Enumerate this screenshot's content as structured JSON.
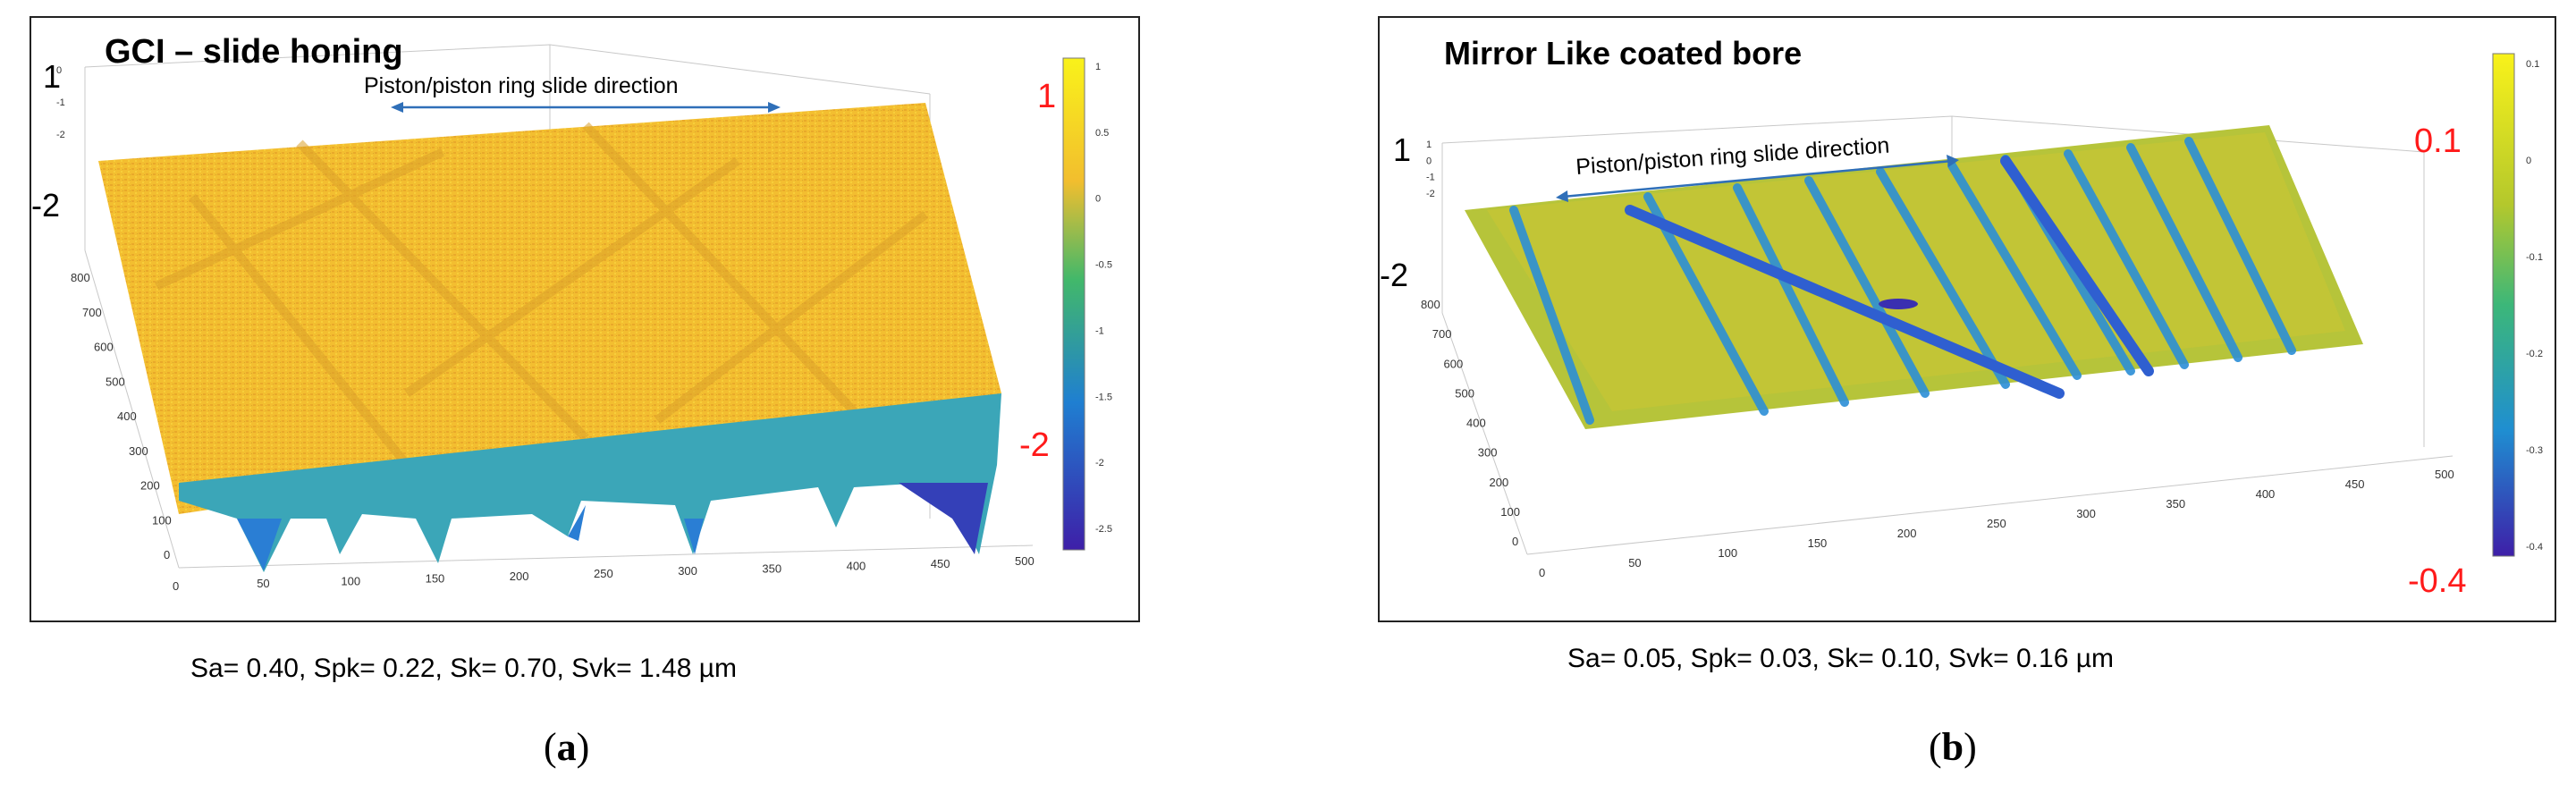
{
  "panel_a": {
    "title": "GCI – slide honing",
    "direction_label": "Piston/piston ring slide direction",
    "z_marks": {
      "top": "1",
      "bottom": "-2"
    },
    "scale_marks": {
      "top": "1",
      "bottom": "-2"
    },
    "colorbar_ticks": [
      "1",
      "0.5",
      "0",
      "-0.5",
      "-1",
      "-1.5",
      "-2",
      "-2.5"
    ],
    "z_ticks": [
      "0",
      "-1",
      "-2"
    ],
    "y_ticks": [
      "0",
      "100",
      "200",
      "300",
      "400",
      "500",
      "600",
      "700",
      "800"
    ],
    "x_ticks": [
      "0",
      "50",
      "100",
      "150",
      "200",
      "250",
      "300",
      "350",
      "400",
      "450",
      "500"
    ],
    "stats": "Sa= 0.40, Spk= 0.22, Sk= 0.70, Svk= 1.48 µm",
    "caption_letter": "a"
  },
  "panel_b": {
    "title": "Mirror Like coated bore",
    "direction_label": "Piston/piston ring slide direction",
    "z_marks": {
      "top": "1",
      "bottom": "-2"
    },
    "scale_marks": {
      "top": "0.1",
      "bottom": "-0.4"
    },
    "colorbar_ticks": [
      "0.1",
      "0",
      "-0.1",
      "-0.2",
      "-0.3",
      "-0.4"
    ],
    "z_ticks": [
      "1",
      "0",
      "-1",
      "-2"
    ],
    "y_ticks": [
      "0",
      "100",
      "200",
      "300",
      "400",
      "500",
      "600",
      "700",
      "800"
    ],
    "x_ticks": [
      "0",
      "50",
      "100",
      "150",
      "200",
      "250",
      "300",
      "350",
      "400",
      "450",
      "500"
    ],
    "stats": "Sa= 0.05, Spk= 0.03, Sk= 0.10, Svk= 0.16 µm",
    "caption_letter": "b"
  },
  "colors": {
    "surface_yellow": "#f2be2e",
    "surface_green": "#8fc43a",
    "valley_blue": "#1f7fd1",
    "valley_deep": "#3a2fb0",
    "arrow": "#2f6fb8",
    "scale_red": "#ff1a1a"
  }
}
